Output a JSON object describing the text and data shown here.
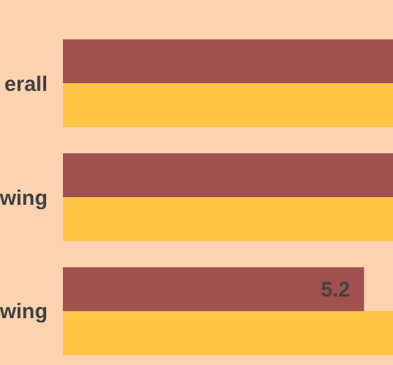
{
  "chart_data": {
    "type": "bar",
    "orientation": "horizontal",
    "categories": [
      "erall",
      "wing",
      "wing"
    ],
    "series": [
      {
        "color": "#9e514e",
        "values": [
          5.7,
          5.7,
          5.2
        ],
        "value_labels": [
          null,
          null,
          "5.2"
        ]
      },
      {
        "color": "#fec546",
        "values": [
          5.7,
          5.7,
          5.7
        ]
      }
    ]
  }
}
